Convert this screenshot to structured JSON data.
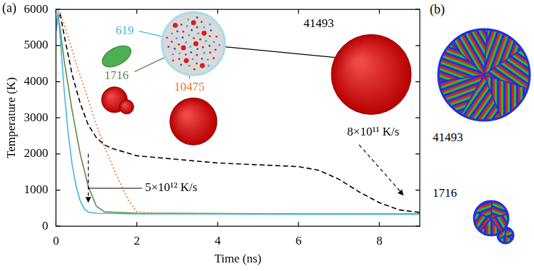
{
  "chart_data": {
    "type": "line",
    "panel_label": "(a)",
    "x_label": "Time (ns)",
    "y_label": "Temperature (K)",
    "xlim": [
      0,
      9
    ],
    "xticks": [
      0,
      2,
      4,
      6,
      8
    ],
    "ylim": [
      0,
      6000
    ],
    "yticks": [
      0,
      1000,
      2000,
      3000,
      4000,
      5000,
      6000
    ],
    "grid": false,
    "series": [
      {
        "name": "619",
        "color": "#41b6e6",
        "line_style": "solid",
        "x": [
          0,
          0.05,
          0.1,
          0.2,
          0.3,
          0.4,
          0.5,
          0.6,
          0.7,
          0.8,
          1.0,
          2,
          4,
          6,
          8,
          9
        ],
        "values": [
          5400,
          5900,
          5300,
          3800,
          2600,
          1700,
          1100,
          700,
          480,
          390,
          360,
          340,
          340,
          330,
          330,
          330
        ]
      },
      {
        "name": "1716",
        "color": "#5a8a45",
        "line_style": "solid",
        "x": [
          0,
          0.05,
          0.1,
          0.2,
          0.4,
          0.6,
          0.8,
          1.0,
          1.2,
          2,
          4,
          6,
          8,
          9
        ],
        "values": [
          5400,
          5850,
          5500,
          4600,
          3200,
          2000,
          1100,
          550,
          400,
          360,
          350,
          340,
          340,
          340
        ]
      },
      {
        "name": "10475",
        "color": "#e8731c",
        "line_style": "dotted",
        "x": [
          0,
          0.1,
          0.2,
          0.5,
          0.8,
          1.0,
          1.2,
          1.5,
          1.8,
          2.0,
          2.2,
          4,
          6,
          8,
          9
        ],
        "values": [
          5500,
          5900,
          5600,
          4500,
          3500,
          2800,
          2200,
          1400,
          700,
          400,
          370,
          350,
          340,
          340,
          340
        ]
      },
      {
        "name": "41493",
        "color": "#000000",
        "line_style": "dashed",
        "x": [
          0,
          0.1,
          0.2,
          0.4,
          0.6,
          0.8,
          1.0,
          1.2,
          1.4,
          2,
          3,
          4,
          5,
          6,
          6.5,
          7,
          7.5,
          8,
          8.5,
          9
        ],
        "values": [
          5500,
          5900,
          5300,
          4200,
          3400,
          2800,
          2450,
          2250,
          2150,
          1950,
          1850,
          1750,
          1700,
          1650,
          1550,
          1300,
          950,
          650,
          450,
          380
        ]
      }
    ],
    "annotations": [
      "5×10¹² K/s",
      "8×10¹¹ K/s"
    ]
  },
  "panel_b": {
    "label": "(b)",
    "particle_labels": [
      "41493",
      "1716"
    ]
  }
}
